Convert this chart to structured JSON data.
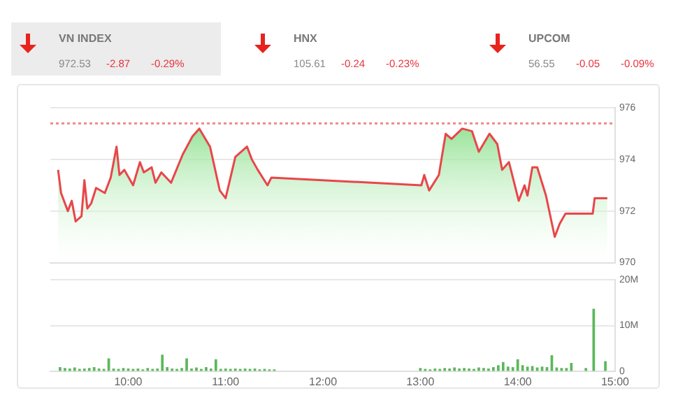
{
  "chart_data": [
    {
      "type": "other",
      "annotations": [
        "VN INDEX",
        "972.53",
        "-2.87",
        "-0.29%",
        "HNX",
        "105.61",
        "-0.24",
        "-0.23%",
        "UPCOM",
        "56.55",
        "-0.05",
        "-0.09%"
      ]
    },
    {
      "type": "area",
      "color": "#e8464a",
      "x": [
        9.28,
        9.31,
        9.38,
        9.42,
        9.46,
        9.52,
        9.55,
        9.58,
        9.62,
        9.67,
        9.76,
        9.82,
        9.88,
        9.91,
        9.96,
        10.05,
        10.12,
        10.16,
        10.24,
        10.28,
        10.34,
        10.44,
        10.56,
        10.66,
        10.73,
        10.84,
        10.94,
        11.0,
        11.1,
        11.22,
        11.27,
        11.33,
        11.43,
        11.47,
        13.01,
        13.04,
        13.09,
        13.19,
        13.26,
        13.32,
        13.43,
        13.53,
        13.6,
        13.71,
        13.79,
        13.84,
        13.91,
        14.01,
        14.07,
        14.1,
        14.15,
        14.2,
        14.29,
        14.38,
        14.43,
        14.49,
        14.77,
        14.79,
        14.92
      ],
      "values": [
        973.6,
        972.7,
        972.0,
        972.4,
        971.6,
        971.8,
        973.2,
        972.1,
        972.3,
        972.9,
        972.7,
        973.3,
        974.5,
        973.4,
        973.6,
        973.0,
        973.9,
        973.5,
        973.7,
        973.1,
        973.5,
        973.1,
        974.2,
        974.9,
        975.2,
        974.5,
        972.8,
        972.5,
        974.1,
        974.5,
        974.0,
        973.6,
        973.0,
        973.3,
        973.0,
        973.4,
        972.8,
        973.4,
        975.0,
        974.8,
        975.2,
        975.1,
        974.3,
        975.0,
        974.6,
        973.6,
        973.9,
        972.4,
        973.0,
        972.6,
        973.7,
        973.7,
        972.6,
        971.0,
        971.5,
        971.9,
        971.9,
        972.5,
        972.5
      ],
      "xlim": [
        9.2,
        15
      ],
      "ylim": [
        970,
        976
      ],
      "yticks": [
        970,
        972,
        974,
        976
      ],
      "ref_lines": [
        {
          "axis": "y",
          "value": 975.4,
          "color": "#f28b8b",
          "line_style": "dotted"
        }
      ],
      "grid": "y",
      "tick_labels": "y"
    },
    {
      "type": "bar",
      "color": "#5cb85c",
      "x": [
        9.3,
        9.35,
        9.4,
        9.45,
        9.5,
        9.55,
        9.6,
        9.65,
        9.7,
        9.75,
        9.8,
        9.85,
        9.9,
        9.95,
        10.0,
        10.05,
        10.1,
        10.15,
        10.2,
        10.25,
        10.3,
        10.35,
        10.4,
        10.45,
        10.5,
        10.55,
        10.6,
        10.65,
        10.7,
        10.75,
        10.8,
        10.85,
        10.9,
        10.95,
        11.0,
        11.05,
        11.1,
        11.15,
        11.2,
        11.25,
        11.3,
        11.35,
        11.4,
        11.45,
        11.5,
        13.0,
        13.05,
        13.1,
        13.15,
        13.2,
        13.25,
        13.3,
        13.35,
        13.4,
        13.45,
        13.5,
        13.55,
        13.6,
        13.65,
        13.7,
        13.75,
        13.8,
        13.85,
        13.9,
        13.95,
        14.0,
        14.05,
        14.1,
        14.15,
        14.2,
        14.25,
        14.3,
        14.35,
        14.4,
        14.45,
        14.5,
        14.55,
        14.7,
        14.78,
        14.9
      ],
      "values": [
        800000,
        600000,
        500000,
        700000,
        400000,
        500000,
        600000,
        800000,
        500000,
        400000,
        2700000,
        500000,
        400000,
        600000,
        500000,
        400000,
        500000,
        300000,
        600000,
        400000,
        500000,
        3500000,
        800000,
        500000,
        400000,
        600000,
        2700000,
        500000,
        700000,
        400000,
        800000,
        500000,
        2500000,
        400000,
        500000,
        400000,
        500000,
        400000,
        500000,
        400000,
        500000,
        300000,
        400000,
        300000,
        300000,
        600000,
        400000,
        300000,
        500000,
        400000,
        600000,
        500000,
        700000,
        500000,
        600000,
        500000,
        400000,
        700000,
        600000,
        500000,
        800000,
        1200000,
        1900000,
        900000,
        800000,
        2500000,
        1200000,
        900000,
        1000000,
        700000,
        900000,
        800000,
        3400000,
        700000,
        600000,
        600000,
        1700000,
        600000,
        13600000,
        2100000
      ],
      "xlim": [
        9.2,
        15
      ],
      "xticks": [
        {
          "value": 10,
          "label": "10:00"
        },
        {
          "value": 11,
          "label": "11:00"
        },
        {
          "value": 12,
          "label": "12:00"
        },
        {
          "value": 13,
          "label": "13:00"
        },
        {
          "value": 14,
          "label": "14:00"
        },
        {
          "value": 15,
          "label": "15:00"
        }
      ],
      "ylim": [
        0,
        20000000
      ],
      "yticks": [
        {
          "value": 0,
          "label": "0"
        },
        {
          "value": 10000000,
          "label": "10M"
        },
        {
          "value": 20000000,
          "label": "20M"
        }
      ],
      "grid": "y"
    }
  ]
}
